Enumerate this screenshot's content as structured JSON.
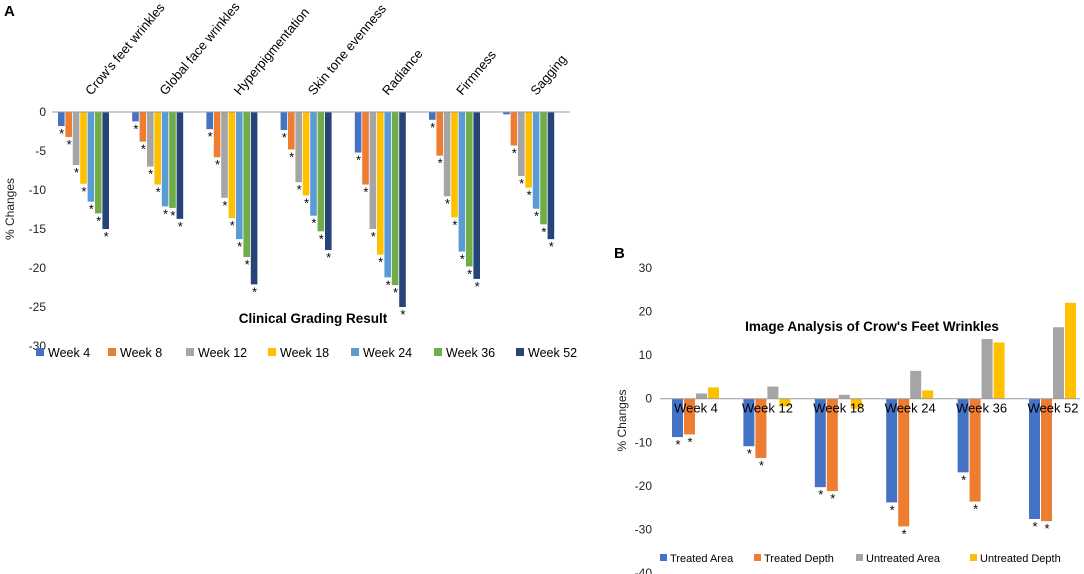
{
  "chart_data": [
    {
      "panel": "A",
      "type": "bar",
      "title": "Clinical Grading Result",
      "xlabel": "",
      "ylabel": "% Changes",
      "ylim": [
        -30,
        0
      ],
      "yticks": [
        0,
        -5,
        -10,
        -15,
        -20,
        -25,
        -30
      ],
      "grid": false,
      "legend_position": "bottom",
      "categories": [
        "Crow's feet wrinkles",
        "Global face wrinkles",
        "Hyperpigmentation",
        "Skin tone evenness",
        "Radiance",
        "Firmness",
        "Sagging"
      ],
      "series": [
        {
          "name": "Week 4",
          "color": "#4472C4",
          "values": [
            -1.8,
            -1.2,
            -2.2,
            -2.3,
            -5.2,
            -1.0,
            -0.3
          ]
        },
        {
          "name": "Week 8",
          "color": "#ED7D31",
          "values": [
            -3.2,
            -3.8,
            -5.8,
            -4.8,
            -9.3,
            -5.6,
            -4.3
          ]
        },
        {
          "name": "Week 12",
          "color": "#A5A5A5",
          "values": [
            -6.8,
            -7.0,
            -11.0,
            -9.0,
            -15.0,
            -10.8,
            -8.2
          ]
        },
        {
          "name": "Week 18",
          "color": "#FFC000",
          "values": [
            -9.2,
            -9.3,
            -13.6,
            -10.7,
            -18.3,
            -13.5,
            -9.7
          ]
        },
        {
          "name": "Week 24",
          "color": "#5B9BD5",
          "values": [
            -11.5,
            -12.1,
            -16.3,
            -13.3,
            -21.2,
            -17.9,
            -12.4
          ]
        },
        {
          "name": "Week 36",
          "color": "#70AD47",
          "values": [
            -13.0,
            -12.3,
            -18.6,
            -15.3,
            -22.2,
            -19.8,
            -14.4
          ]
        },
        {
          "name": "Week 52",
          "color": "#264478",
          "values": [
            -15.0,
            -13.7,
            -22.1,
            -17.7,
            -25.0,
            -21.4,
            -16.3
          ]
        }
      ],
      "significance": [
        [
          true,
          true,
          true,
          true,
          true,
          true,
          true
        ],
        [
          true,
          true,
          true,
          true,
          true,
          true,
          true
        ],
        [
          true,
          true,
          true,
          true,
          true,
          true,
          true
        ],
        [
          true,
          true,
          true,
          true,
          true,
          true,
          true
        ],
        [
          true,
          true,
          true,
          true,
          true,
          true,
          true
        ],
        [
          true,
          true,
          true,
          true,
          true,
          true,
          true
        ],
        [
          false,
          true,
          true,
          true,
          true,
          true,
          true
        ]
      ],
      "annotation_symbol": "*"
    },
    {
      "panel": "B",
      "type": "bar",
      "title": "Image Analysis of Crow's Feet Wrinkles",
      "xlabel": "",
      "ylabel": "% Changes",
      "ylim": [
        -40,
        30
      ],
      "yticks": [
        30,
        20,
        10,
        0,
        -10,
        -20,
        -30,
        -40
      ],
      "grid": false,
      "legend_position": "bottom",
      "categories": [
        "Week 4",
        "Week 12",
        "Week 18",
        "Week 24",
        "Week 36",
        "Week 52"
      ],
      "series": [
        {
          "name": "Treated Area",
          "color": "#4472C4",
          "values": [
            -8.8,
            -10.9,
            -20.3,
            -23.8,
            -16.9,
            -27.6
          ]
        },
        {
          "name": "Treated Depth",
          "color": "#ED7D31",
          "values": [
            -8.2,
            -13.6,
            -21.2,
            -29.3,
            -23.6,
            -28.1
          ]
        },
        {
          "name": "Untreated Area",
          "color": "#A5A5A5",
          "values": [
            1.2,
            2.8,
            0.9,
            6.4,
            13.7,
            16.4
          ]
        },
        {
          "name": "Untreated Depth",
          "color": "#FFC000",
          "values": [
            2.6,
            -1.8,
            -2.3,
            1.9,
            12.9,
            22.0
          ]
        }
      ],
      "significance": [
        [
          true,
          true,
          true,
          true,
          true,
          true
        ],
        [
          true,
          true,
          true,
          true,
          true,
          true
        ],
        [
          false,
          false,
          false,
          false,
          false,
          false
        ],
        [
          false,
          false,
          false,
          false,
          false,
          false
        ]
      ],
      "annotation_symbol": "*"
    }
  ]
}
